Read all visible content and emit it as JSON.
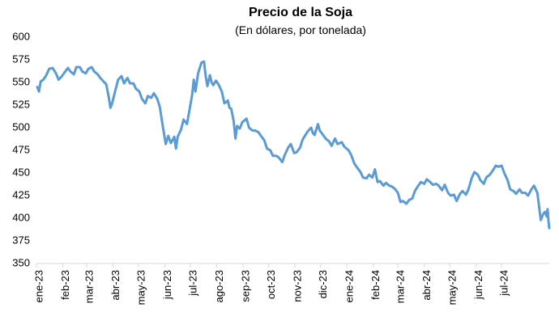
{
  "chart_data": {
    "type": "line",
    "title": "Precio de la Soja",
    "subtitle": "(En dólares, por tonelada)",
    "xlabel": "",
    "ylabel": "",
    "ylim": [
      350,
      600
    ],
    "yticks": [
      350,
      375,
      400,
      425,
      450,
      475,
      500,
      525,
      550,
      575,
      600
    ],
    "grid": false,
    "legend": "none",
    "line_color": "#5B9BD5",
    "x_tick_labels": [
      "ene-23",
      "feb-23",
      "mar-23",
      "abr-23",
      "may-23",
      "jun-23",
      "jul-23",
      "ago-23",
      "sep-23",
      "oct-23",
      "nov-23",
      "dic-23",
      "ene-24",
      "feb-24",
      "mar-24",
      "abr-24",
      "may-24",
      "jun-24",
      "jul-24"
    ],
    "x_range": [
      "2023-01-01",
      "2024-08-26"
    ],
    "series": [
      {
        "name": "",
        "points": [
          [
            "2023-01-02",
            545
          ],
          [
            "2023-01-04",
            540
          ],
          [
            "2023-01-06",
            551
          ],
          [
            "2023-01-09",
            553
          ],
          [
            "2023-01-12",
            557
          ],
          [
            "2023-01-16",
            565
          ],
          [
            "2023-01-20",
            566
          ],
          [
            "2023-01-24",
            560
          ],
          [
            "2023-01-27",
            553
          ],
          [
            "2023-01-31",
            557
          ],
          [
            "2023-02-03",
            561
          ],
          [
            "2023-02-07",
            566
          ],
          [
            "2023-02-10",
            562
          ],
          [
            "2023-02-14",
            559
          ],
          [
            "2023-02-17",
            567
          ],
          [
            "2023-02-21",
            567
          ],
          [
            "2023-02-24",
            562
          ],
          [
            "2023-02-28",
            560
          ],
          [
            "2023-03-03",
            565
          ],
          [
            "2023-03-07",
            567
          ],
          [
            "2023-03-10",
            562
          ],
          [
            "2023-03-14",
            559
          ],
          [
            "2023-03-17",
            555
          ],
          [
            "2023-03-21",
            551
          ],
          [
            "2023-03-24",
            548
          ],
          [
            "2023-03-27",
            534
          ],
          [
            "2023-03-29",
            522
          ],
          [
            "2023-03-31",
            527
          ],
          [
            "2023-04-04",
            542
          ],
          [
            "2023-04-07",
            553
          ],
          [
            "2023-04-11",
            557
          ],
          [
            "2023-04-14",
            549
          ],
          [
            "2023-04-18",
            555
          ],
          [
            "2023-04-21",
            549
          ],
          [
            "2023-04-25",
            549
          ],
          [
            "2023-04-28",
            543
          ],
          [
            "2023-05-02",
            540
          ],
          [
            "2023-05-05",
            532
          ],
          [
            "2023-05-09",
            527
          ],
          [
            "2023-05-12",
            535
          ],
          [
            "2023-05-16",
            533
          ],
          [
            "2023-05-19",
            538
          ],
          [
            "2023-05-23",
            532
          ],
          [
            "2023-05-26",
            523
          ],
          [
            "2023-05-30",
            499
          ],
          [
            "2023-06-02",
            482
          ],
          [
            "2023-06-05",
            491
          ],
          [
            "2023-06-08",
            483
          ],
          [
            "2023-06-12",
            490
          ],
          [
            "2023-06-14",
            477
          ],
          [
            "2023-06-16",
            490
          ],
          [
            "2023-06-20",
            498
          ],
          [
            "2023-06-23",
            509
          ],
          [
            "2023-06-27",
            504
          ],
          [
            "2023-06-30",
            520
          ],
          [
            "2023-07-03",
            536
          ],
          [
            "2023-07-05",
            553
          ],
          [
            "2023-07-07",
            540
          ],
          [
            "2023-07-10",
            560
          ],
          [
            "2023-07-12",
            566
          ],
          [
            "2023-07-14",
            572
          ],
          [
            "2023-07-17",
            573
          ],
          [
            "2023-07-19",
            557
          ],
          [
            "2023-07-21",
            546
          ],
          [
            "2023-07-24",
            558
          ],
          [
            "2023-07-26",
            550
          ],
          [
            "2023-07-28",
            547
          ],
          [
            "2023-07-31",
            552
          ],
          [
            "2023-08-03",
            548
          ],
          [
            "2023-08-07",
            540
          ],
          [
            "2023-08-10",
            527
          ],
          [
            "2023-08-14",
            530
          ],
          [
            "2023-08-16",
            522
          ],
          [
            "2023-08-18",
            521
          ],
          [
            "2023-08-21",
            507
          ],
          [
            "2023-08-23",
            488
          ],
          [
            "2023-08-25",
            502
          ],
          [
            "2023-08-28",
            499
          ],
          [
            "2023-08-31",
            506
          ],
          [
            "2023-09-05",
            510
          ],
          [
            "2023-09-08",
            500
          ],
          [
            "2023-09-12",
            497
          ],
          [
            "2023-09-15",
            497
          ],
          [
            "2023-09-19",
            495
          ],
          [
            "2023-09-22",
            491
          ],
          [
            "2023-09-26",
            486
          ],
          [
            "2023-09-29",
            477
          ],
          [
            "2023-10-03",
            475
          ],
          [
            "2023-10-06",
            469
          ],
          [
            "2023-10-10",
            469
          ],
          [
            "2023-10-13",
            467
          ],
          [
            "2023-10-17",
            462
          ],
          [
            "2023-10-20",
            470
          ],
          [
            "2023-10-24",
            478
          ],
          [
            "2023-10-27",
            482
          ],
          [
            "2023-10-31",
            472
          ],
          [
            "2023-11-03",
            473
          ],
          [
            "2023-11-07",
            478
          ],
          [
            "2023-11-10",
            487
          ],
          [
            "2023-11-14",
            493
          ],
          [
            "2023-11-16",
            496
          ],
          [
            "2023-11-20",
            500
          ],
          [
            "2023-11-22",
            494
          ],
          [
            "2023-11-24",
            492
          ],
          [
            "2023-11-28",
            504
          ],
          [
            "2023-11-30",
            497
          ],
          [
            "2023-12-04",
            492
          ],
          [
            "2023-12-07",
            488
          ],
          [
            "2023-12-11",
            485
          ],
          [
            "2023-12-14",
            480
          ],
          [
            "2023-12-18",
            488
          ],
          [
            "2023-12-21",
            482
          ],
          [
            "2023-12-26",
            484
          ],
          [
            "2023-12-29",
            479
          ],
          [
            "2024-01-03",
            475
          ],
          [
            "2024-01-06",
            470
          ],
          [
            "2024-01-10",
            460
          ],
          [
            "2024-01-13",
            456
          ],
          [
            "2024-01-17",
            451
          ],
          [
            "2024-01-20",
            445
          ],
          [
            "2024-01-24",
            444
          ],
          [
            "2024-01-27",
            448
          ],
          [
            "2024-01-31",
            445
          ],
          [
            "2024-02-03",
            454
          ],
          [
            "2024-02-06",
            440
          ],
          [
            "2024-02-09",
            441
          ],
          [
            "2024-02-13",
            436
          ],
          [
            "2024-02-16",
            439
          ],
          [
            "2024-02-20",
            436
          ],
          [
            "2024-02-23",
            435
          ],
          [
            "2024-02-27",
            432
          ],
          [
            "2024-03-01",
            428
          ],
          [
            "2024-03-04",
            418
          ],
          [
            "2024-03-07",
            419
          ],
          [
            "2024-03-11",
            416
          ],
          [
            "2024-03-14",
            420
          ],
          [
            "2024-03-18",
            422
          ],
          [
            "2024-03-21",
            430
          ],
          [
            "2024-03-25",
            436
          ],
          [
            "2024-03-28",
            440
          ],
          [
            "2024-04-01",
            438
          ],
          [
            "2024-04-04",
            443
          ],
          [
            "2024-04-08",
            440
          ],
          [
            "2024-04-11",
            437
          ],
          [
            "2024-04-15",
            438
          ],
          [
            "2024-04-18",
            436
          ],
          [
            "2024-04-22",
            431
          ],
          [
            "2024-04-25",
            437
          ],
          [
            "2024-04-29",
            428
          ],
          [
            "2024-05-02",
            425
          ],
          [
            "2024-05-06",
            426
          ],
          [
            "2024-05-09",
            419
          ],
          [
            "2024-05-13",
            427
          ],
          [
            "2024-05-16",
            430
          ],
          [
            "2024-05-20",
            426
          ],
          [
            "2024-05-23",
            432
          ],
          [
            "2024-05-27",
            445
          ],
          [
            "2024-05-30",
            451
          ],
          [
            "2024-06-03",
            448
          ],
          [
            "2024-06-06",
            442
          ],
          [
            "2024-06-10",
            438
          ],
          [
            "2024-06-13",
            445
          ],
          [
            "2024-06-17",
            448
          ],
          [
            "2024-06-20",
            452
          ],
          [
            "2024-06-24",
            458
          ],
          [
            "2024-06-27",
            457
          ],
          [
            "2024-07-01",
            458
          ],
          [
            "2024-07-04",
            450
          ],
          [
            "2024-07-08",
            442
          ],
          [
            "2024-07-11",
            432
          ],
          [
            "2024-07-15",
            430
          ],
          [
            "2024-07-18",
            427
          ],
          [
            "2024-07-22",
            432
          ],
          [
            "2024-07-25",
            428
          ],
          [
            "2024-07-29",
            428
          ],
          [
            "2024-08-01",
            425
          ],
          [
            "2024-08-05",
            432
          ],
          [
            "2024-08-08",
            436
          ],
          [
            "2024-08-12",
            428
          ],
          [
            "2024-08-14",
            413
          ],
          [
            "2024-08-16",
            398
          ],
          [
            "2024-08-19",
            405
          ],
          [
            "2024-08-21",
            407
          ],
          [
            "2024-08-23",
            402
          ],
          [
            "2024-08-24",
            410
          ],
          [
            "2024-08-25",
            397
          ],
          [
            "2024-08-26",
            389
          ]
        ]
      }
    ]
  }
}
